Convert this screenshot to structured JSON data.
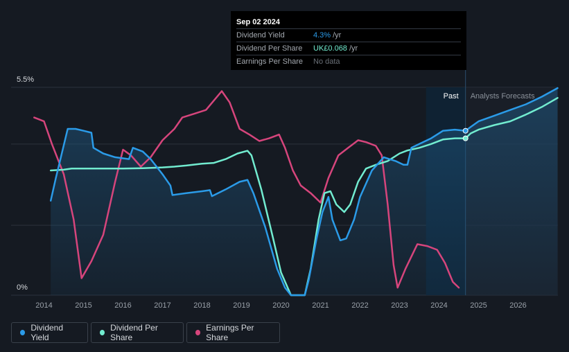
{
  "tooltip": {
    "date": "Sep 02 2024",
    "rows": [
      {
        "label": "Dividend Yield",
        "value": "4.3%",
        "unit": "/yr"
      },
      {
        "label": "Dividend Per Share",
        "value": "UK£0.068",
        "unit": "/yr"
      },
      {
        "label": "Earnings Per Share",
        "value": "No data",
        "unit": ""
      }
    ]
  },
  "labels": {
    "past": "Past",
    "forecast": "Analysts Forecasts"
  },
  "legend": [
    {
      "label": "Dividend Yield",
      "color": "#2b9be8"
    },
    {
      "label": "Dividend Per Share",
      "color": "#72ecd0"
    },
    {
      "label": "Earnings Per Share",
      "color": "#d6457c"
    }
  ],
  "chart_data": {
    "type": "line",
    "x_ticks": [
      "2014",
      "2015",
      "2016",
      "2017",
      "2018",
      "2019",
      "2020",
      "2021",
      "2022",
      "2023",
      "2024",
      "2025",
      "2026"
    ],
    "y_ticks": [
      "0%",
      "5.5%"
    ],
    "ylim": [
      0,
      5.5
    ],
    "xlim": [
      2013.0,
      2027.0
    ],
    "past_end": 2024.67,
    "forecast_band_start": 2023.67,
    "series": [
      {
        "name": "Dividend Yield",
        "color": "#2b9be8",
        "values": [
          [
            2014.17,
            2.5
          ],
          [
            2014.3,
            3.1
          ],
          [
            2014.6,
            4.4
          ],
          [
            2014.8,
            4.4
          ],
          [
            2015.0,
            4.35
          ],
          [
            2015.2,
            4.3
          ],
          [
            2015.25,
            3.9
          ],
          [
            2015.5,
            3.75
          ],
          [
            2015.8,
            3.65
          ],
          [
            2016.15,
            3.6
          ],
          [
            2016.25,
            3.9
          ],
          [
            2016.5,
            3.8
          ],
          [
            2016.7,
            3.6
          ],
          [
            2017.0,
            3.2
          ],
          [
            2017.2,
            2.9
          ],
          [
            2017.25,
            2.65
          ],
          [
            2017.6,
            2.7
          ],
          [
            2018.0,
            2.75
          ],
          [
            2018.2,
            2.78
          ],
          [
            2018.25,
            2.62
          ],
          [
            2018.6,
            2.8
          ],
          [
            2018.95,
            3.0
          ],
          [
            2019.15,
            3.05
          ],
          [
            2019.3,
            2.7
          ],
          [
            2019.6,
            1.8
          ],
          [
            2019.9,
            0.7
          ],
          [
            2020.1,
            0.2
          ],
          [
            2020.25,
            0.0
          ],
          [
            2020.6,
            0.0
          ],
          [
            2020.7,
            0.4
          ],
          [
            2020.9,
            1.5
          ],
          [
            2021.05,
            2.2
          ],
          [
            2021.2,
            2.6
          ],
          [
            2021.3,
            2.0
          ],
          [
            2021.5,
            1.45
          ],
          [
            2021.65,
            1.5
          ],
          [
            2021.85,
            2.0
          ],
          [
            2022.0,
            2.6
          ],
          [
            2022.3,
            3.3
          ],
          [
            2022.6,
            3.65
          ],
          [
            2022.9,
            3.55
          ],
          [
            2023.1,
            3.45
          ],
          [
            2023.2,
            3.45
          ],
          [
            2023.3,
            3.9
          ],
          [
            2023.5,
            4.0
          ],
          [
            2023.8,
            4.15
          ],
          [
            2024.1,
            4.35
          ],
          [
            2024.4,
            4.38
          ],
          [
            2024.67,
            4.35
          ],
          [
            2024.8,
            4.45
          ],
          [
            2025.0,
            4.6
          ],
          [
            2025.4,
            4.75
          ],
          [
            2025.8,
            4.9
          ],
          [
            2026.2,
            5.05
          ],
          [
            2026.6,
            5.25
          ],
          [
            2027.0,
            5.48
          ]
        ]
      },
      {
        "name": "Dividend Per Share",
        "color": "#72ecd0",
        "values": [
          [
            2014.17,
            3.3
          ],
          [
            2014.5,
            3.32
          ],
          [
            2014.7,
            3.35
          ],
          [
            2015.0,
            3.35
          ],
          [
            2016.0,
            3.35
          ],
          [
            2016.5,
            3.36
          ],
          [
            2017.0,
            3.38
          ],
          [
            2017.3,
            3.4
          ],
          [
            2017.6,
            3.43
          ],
          [
            2018.0,
            3.48
          ],
          [
            2018.3,
            3.5
          ],
          [
            2018.6,
            3.6
          ],
          [
            2018.9,
            3.75
          ],
          [
            2019.15,
            3.82
          ],
          [
            2019.25,
            3.7
          ],
          [
            2019.5,
            2.8
          ],
          [
            2019.8,
            1.5
          ],
          [
            2020.0,
            0.6
          ],
          [
            2020.25,
            0.0
          ],
          [
            2020.6,
            0.0
          ],
          [
            2020.75,
            0.7
          ],
          [
            2020.95,
            2.0
          ],
          [
            2021.1,
            2.7
          ],
          [
            2021.25,
            2.75
          ],
          [
            2021.4,
            2.4
          ],
          [
            2021.6,
            2.2
          ],
          [
            2021.75,
            2.4
          ],
          [
            2021.95,
            3.0
          ],
          [
            2022.15,
            3.35
          ],
          [
            2022.4,
            3.45
          ],
          [
            2022.7,
            3.55
          ],
          [
            2023.0,
            3.75
          ],
          [
            2023.2,
            3.83
          ],
          [
            2023.5,
            3.9
          ],
          [
            2023.8,
            4.0
          ],
          [
            2024.1,
            4.12
          ],
          [
            2024.4,
            4.15
          ],
          [
            2024.67,
            4.15
          ],
          [
            2024.8,
            4.28
          ],
          [
            2025.0,
            4.38
          ],
          [
            2025.4,
            4.5
          ],
          [
            2025.8,
            4.6
          ],
          [
            2026.2,
            4.78
          ],
          [
            2026.6,
            4.98
          ],
          [
            2027.0,
            5.22
          ]
        ]
      },
      {
        "name": "Earnings Per Share",
        "color": "#d6457c",
        "values": [
          [
            2013.75,
            4.7
          ],
          [
            2014.0,
            4.6
          ],
          [
            2014.2,
            4.0
          ],
          [
            2014.5,
            3.2
          ],
          [
            2014.75,
            2.0
          ],
          [
            2014.95,
            0.45
          ],
          [
            2015.2,
            0.9
          ],
          [
            2015.5,
            1.6
          ],
          [
            2015.8,
            3.0
          ],
          [
            2016.0,
            3.85
          ],
          [
            2016.2,
            3.7
          ],
          [
            2016.45,
            3.4
          ],
          [
            2016.7,
            3.65
          ],
          [
            2017.0,
            4.1
          ],
          [
            2017.3,
            4.4
          ],
          [
            2017.5,
            4.7
          ],
          [
            2017.8,
            4.8
          ],
          [
            2018.1,
            4.9
          ],
          [
            2018.3,
            5.15
          ],
          [
            2018.5,
            5.4
          ],
          [
            2018.7,
            5.1
          ],
          [
            2018.95,
            4.4
          ],
          [
            2019.2,
            4.25
          ],
          [
            2019.45,
            4.08
          ],
          [
            2019.7,
            4.15
          ],
          [
            2019.95,
            4.25
          ],
          [
            2020.1,
            3.9
          ],
          [
            2020.3,
            3.3
          ],
          [
            2020.5,
            2.9
          ],
          [
            2020.75,
            2.7
          ],
          [
            2021.0,
            2.45
          ],
          [
            2021.2,
            3.1
          ],
          [
            2021.45,
            3.7
          ],
          [
            2021.7,
            3.9
          ],
          [
            2021.95,
            4.1
          ],
          [
            2022.15,
            4.05
          ],
          [
            2022.4,
            3.95
          ],
          [
            2022.55,
            3.7
          ],
          [
            2022.7,
            2.4
          ],
          [
            2022.85,
            0.8
          ],
          [
            2022.95,
            0.2
          ],
          [
            2023.15,
            0.7
          ],
          [
            2023.45,
            1.35
          ],
          [
            2023.7,
            1.3
          ],
          [
            2023.95,
            1.2
          ],
          [
            2024.15,
            0.85
          ],
          [
            2024.35,
            0.35
          ],
          [
            2024.5,
            0.2
          ]
        ]
      }
    ]
  }
}
